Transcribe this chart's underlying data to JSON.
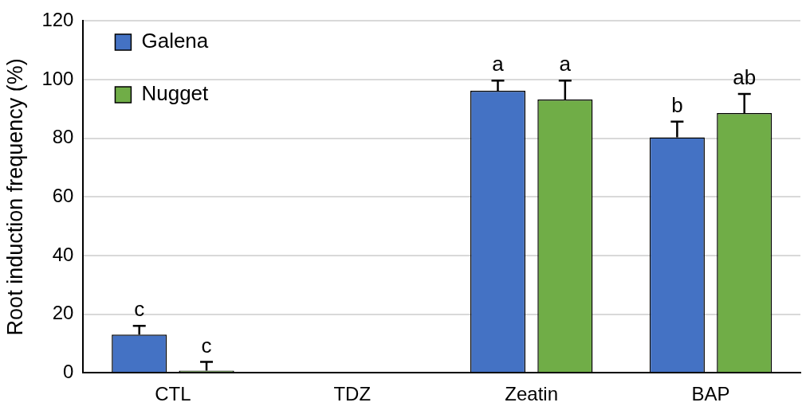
{
  "chart_data": {
    "type": "bar",
    "ylabel": "Root induction frequency (%)",
    "categories": [
      "CTL",
      "TDZ",
      "Zeatin",
      "BAP"
    ],
    "series": [
      {
        "name": "Galena",
        "color": "#4472c4",
        "values": [
          13,
          0,
          96.2,
          80.3
        ],
        "errors": [
          3,
          null,
          3.5,
          5.4
        ]
      },
      {
        "name": "Nugget",
        "color": "#70ad47",
        "values": [
          0.7,
          0,
          93.2,
          88.6
        ],
        "errors": [
          3,
          null,
          6.5,
          6.5
        ]
      }
    ],
    "ylim": [
      0,
      120
    ],
    "yticks": [
      0,
      20,
      40,
      60,
      80,
      100,
      120
    ],
    "grid": "y",
    "legend": "top left",
    "annotations": [
      "c",
      "c",
      "a",
      "a",
      "b",
      "ab"
    ]
  }
}
